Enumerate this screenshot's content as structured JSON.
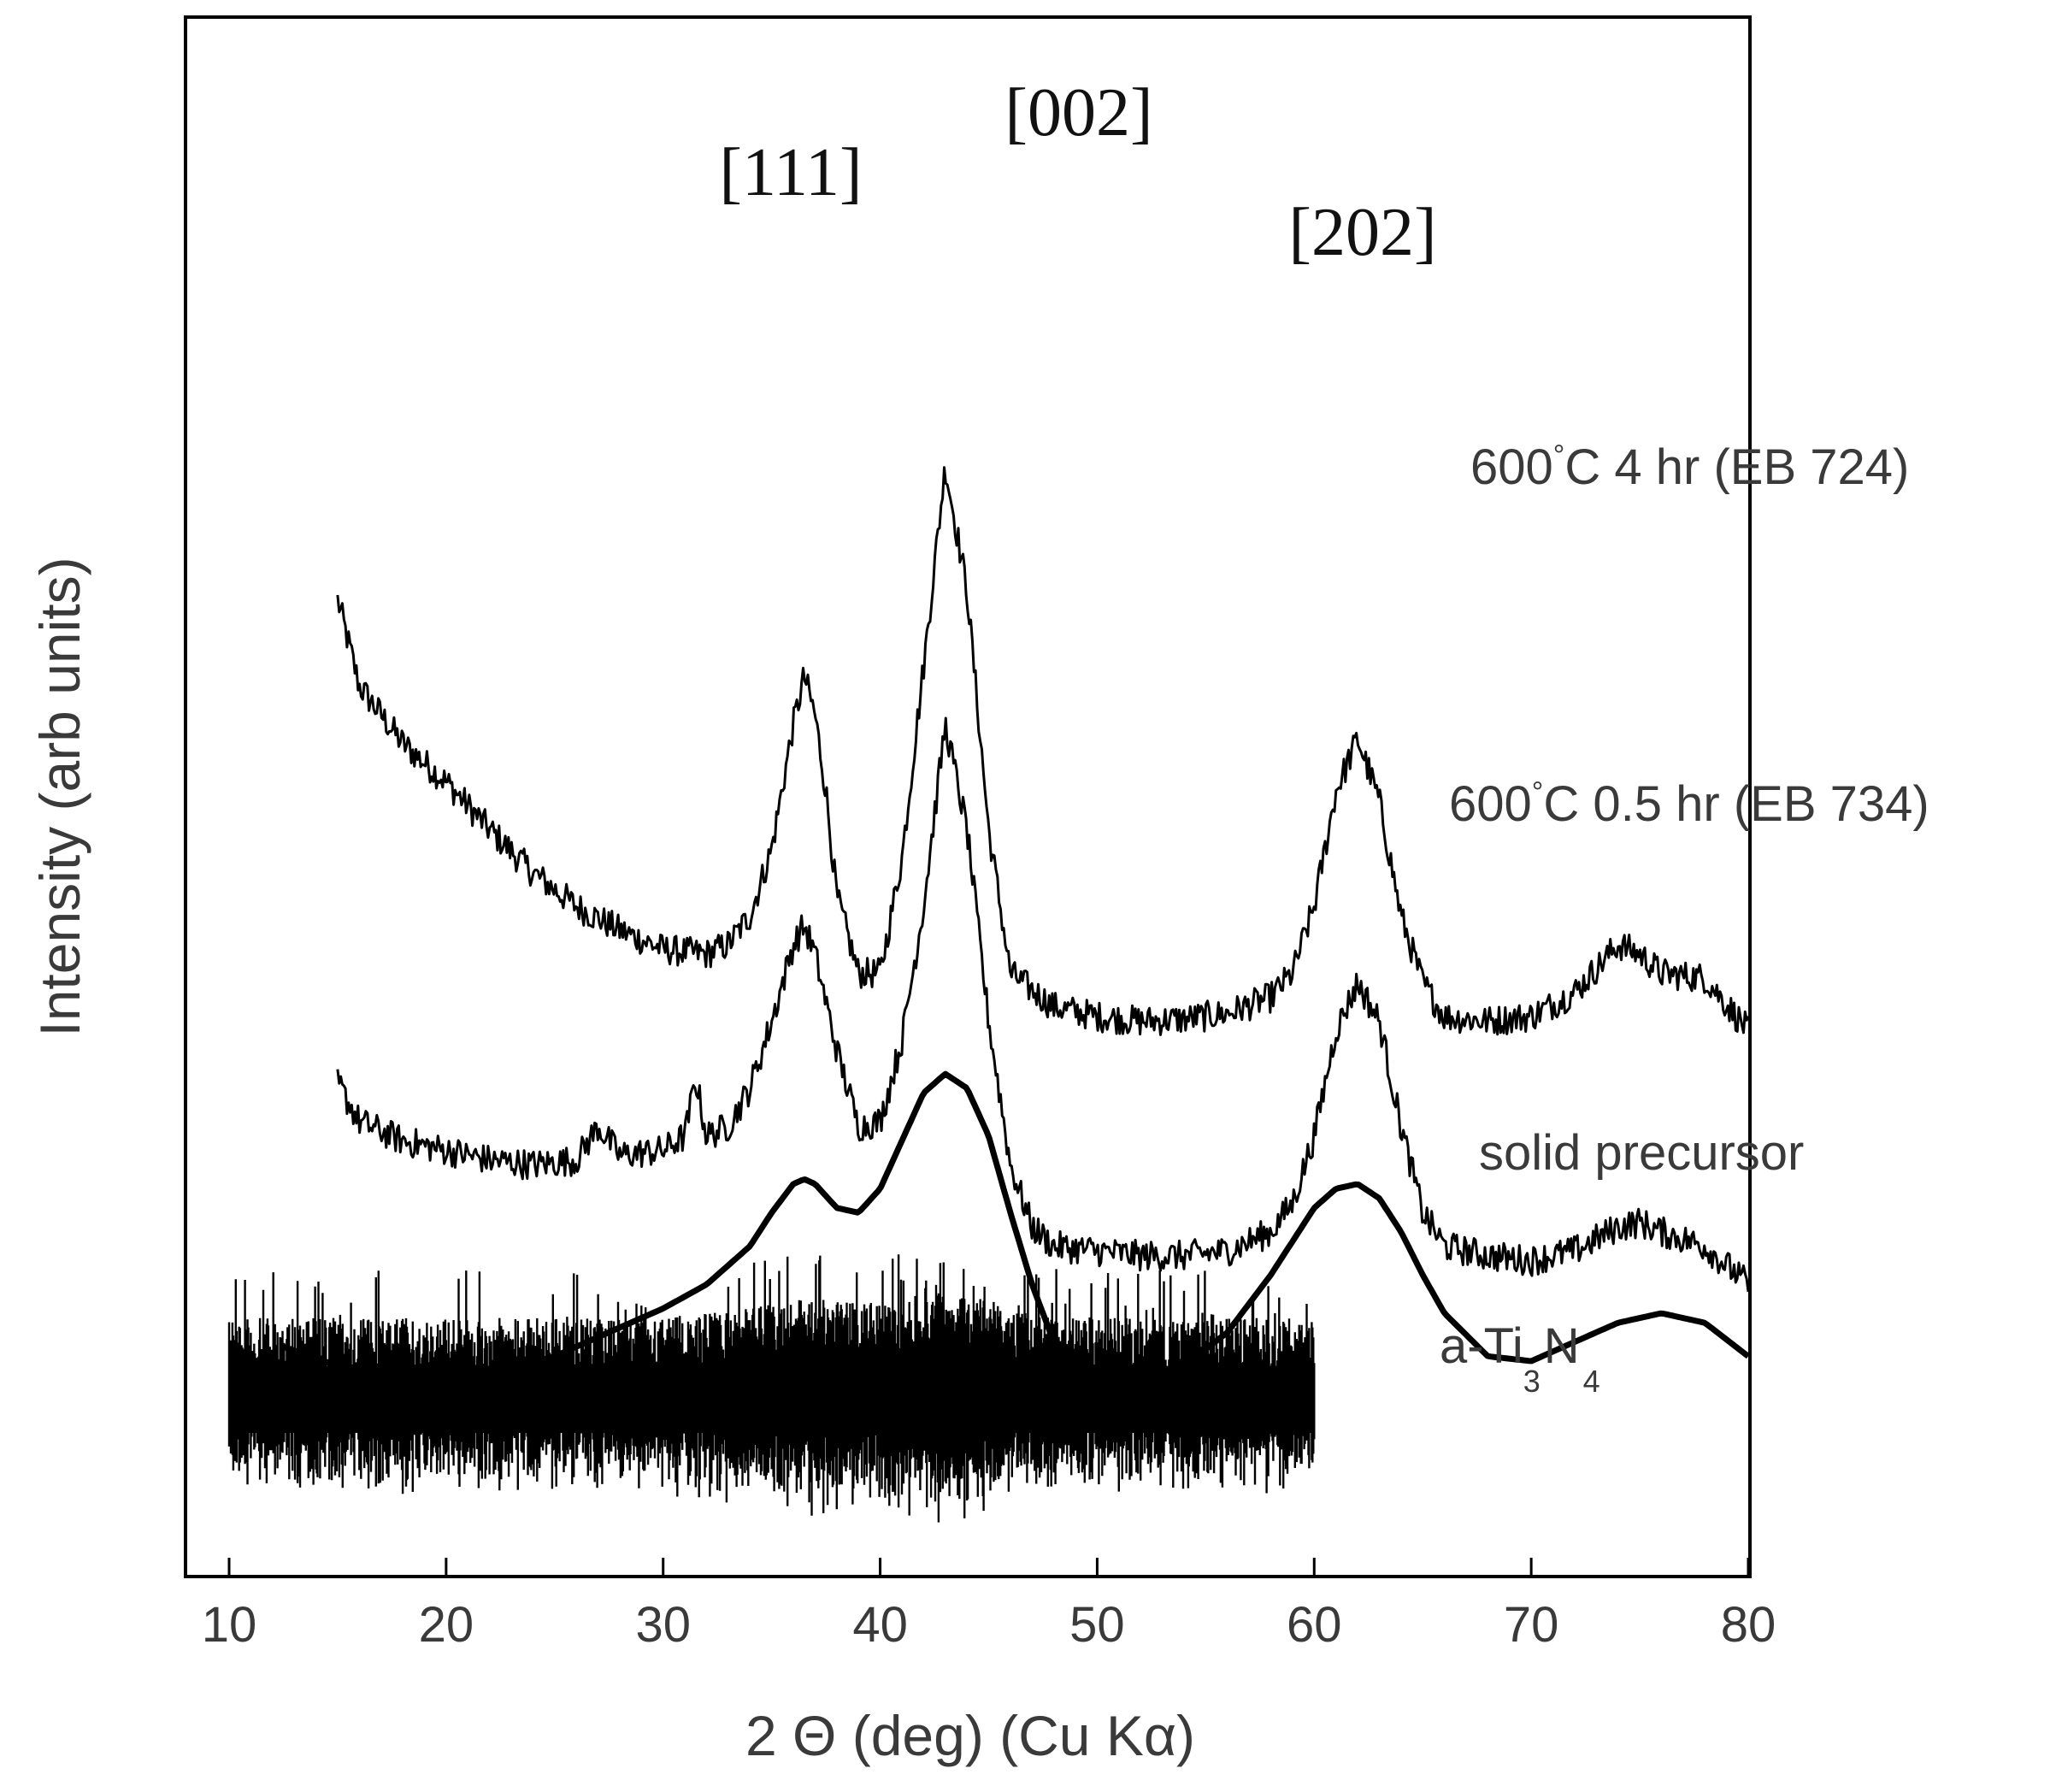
{
  "chart_data": {
    "type": "line",
    "title": "",
    "xlabel": "2 Θ (deg) (Cu Kα)",
    "ylabel": "Intensity (arb units)",
    "xlim": [
      8,
      80
    ],
    "xticks": [
      "10",
      "20",
      "30",
      "40",
      "50",
      "60",
      "70",
      "80"
    ],
    "y_tick_labels": false,
    "grid": false,
    "colors": {
      "trace": "#000000",
      "text": "#3a3a3a",
      "frame": "#000000"
    },
    "peak_annotations": [
      {
        "label": "[111]",
        "x": 36.5
      },
      {
        "label": "[002]",
        "x": 43
      },
      {
        "label": "[202]",
        "x": 62
      }
    ],
    "series": [
      {
        "label_main": "600°C 4 hr (EB 724)",
        "label_parts": [
          "600",
          "°",
          "C 4 hr (EB 724)"
        ],
        "style": "noisy",
        "x": [
          15,
          16,
          18,
          20,
          22,
          24,
          26,
          28,
          30,
          32,
          33,
          34,
          35,
          36,
          36.5,
          37,
          37.5,
          38,
          39,
          40,
          41,
          42,
          43,
          44,
          45,
          46,
          48,
          50,
          52,
          54,
          56,
          58,
          59,
          60,
          61,
          62,
          63,
          64,
          65,
          66,
          68,
          70,
          72,
          74,
          75,
          76,
          78,
          80
        ],
        "y": [
          10.2,
          9.3,
          8.7,
          8.3,
          7.8,
          7.35,
          7.0,
          6.75,
          6.55,
          6.5,
          6.6,
          6.9,
          7.6,
          8.9,
          9.4,
          9.0,
          8.2,
          7.1,
          6.3,
          6.3,
          7.5,
          9.5,
          11.6,
          10.3,
          7.8,
          6.3,
          5.95,
          5.85,
          5.8,
          5.82,
          5.88,
          6.05,
          6.3,
          7.0,
          8.2,
          8.75,
          8.1,
          6.9,
          6.2,
          5.85,
          5.8,
          5.85,
          6.1,
          6.6,
          6.5,
          6.3,
          6.25,
          5.7
        ]
      },
      {
        "label_main": "600°C 0.5 hr (EB 734)",
        "label_parts": [
          "600",
          "°",
          "C 0.5 hr (EB 734)"
        ],
        "style": "noisy",
        "x": [
          15,
          16,
          18,
          20,
          22,
          24,
          26,
          27,
          28,
          30,
          31,
          31.5,
          32,
          33,
          34,
          35,
          36,
          36.5,
          37,
          38,
          39,
          40,
          41,
          42,
          43,
          44,
          45,
          46,
          47,
          48,
          50,
          52,
          54,
          56,
          58,
          59,
          60,
          61,
          62,
          63,
          64,
          65,
          66,
          68,
          70,
          72,
          74,
          75,
          76,
          78,
          80
        ],
        "y": [
          5.15,
          4.75,
          4.55,
          4.45,
          4.35,
          4.3,
          4.35,
          4.7,
          4.4,
          4.45,
          4.6,
          5.2,
          4.6,
          4.7,
          5.1,
          5.8,
          6.6,
          6.8,
          6.5,
          5.5,
          4.7,
          4.75,
          5.6,
          7.0,
          8.9,
          7.8,
          5.8,
          4.3,
          3.65,
          3.45,
          3.4,
          3.35,
          3.35,
          3.4,
          3.6,
          3.9,
          4.6,
          5.7,
          6.2,
          5.8,
          4.7,
          3.8,
          3.45,
          3.35,
          3.3,
          3.4,
          3.65,
          3.7,
          3.6,
          3.45,
          3.05
        ]
      },
      {
        "label_main": "solid precursor",
        "label_parts": [
          "solid precursor"
        ],
        "style": "smooth",
        "x": [
          12.5,
          15,
          18,
          20,
          22,
          25,
          28,
          30,
          32,
          34,
          35,
          36,
          36.5,
          37,
          38,
          39,
          40,
          41,
          42,
          43,
          44,
          45,
          46,
          47,
          48,
          49,
          50,
          52,
          54,
          56,
          58,
          60,
          61,
          62,
          63,
          64,
          65,
          66,
          68,
          70,
          72,
          74,
          76,
          78,
          80
        ],
        "y": [
          2.4,
          2.2,
          2.07,
          2.06,
          2.1,
          2.3,
          2.6,
          2.8,
          3.05,
          3.45,
          3.8,
          4.1,
          4.15,
          4.1,
          3.85,
          3.8,
          4.05,
          4.55,
          5.05,
          5.25,
          5.1,
          4.6,
          3.8,
          3.05,
          2.45,
          2.15,
          2.05,
          2.05,
          2.2,
          2.55,
          3.15,
          3.85,
          4.05,
          4.1,
          3.95,
          3.6,
          3.15,
          2.75,
          2.3,
          2.25,
          2.45,
          2.65,
          2.75,
          2.65,
          2.3
        ]
      },
      {
        "label_main": "a-Ti",
        "label_parts": [
          "a-Ti",
          "3",
          "N",
          "4"
        ],
        "style": "dense-noise",
        "x": [
          10,
          15,
          20,
          25,
          30,
          35,
          36,
          37,
          40,
          42,
          43,
          44,
          47,
          50,
          55,
          60
        ],
        "y": [
          0.3,
          0.3,
          0.3,
          0.3,
          0.3,
          0.45,
          0.55,
          0.5,
          0.45,
          0.55,
          0.6,
          0.55,
          0.35,
          0.3,
          0.3,
          0.3
        ]
      }
    ]
  }
}
